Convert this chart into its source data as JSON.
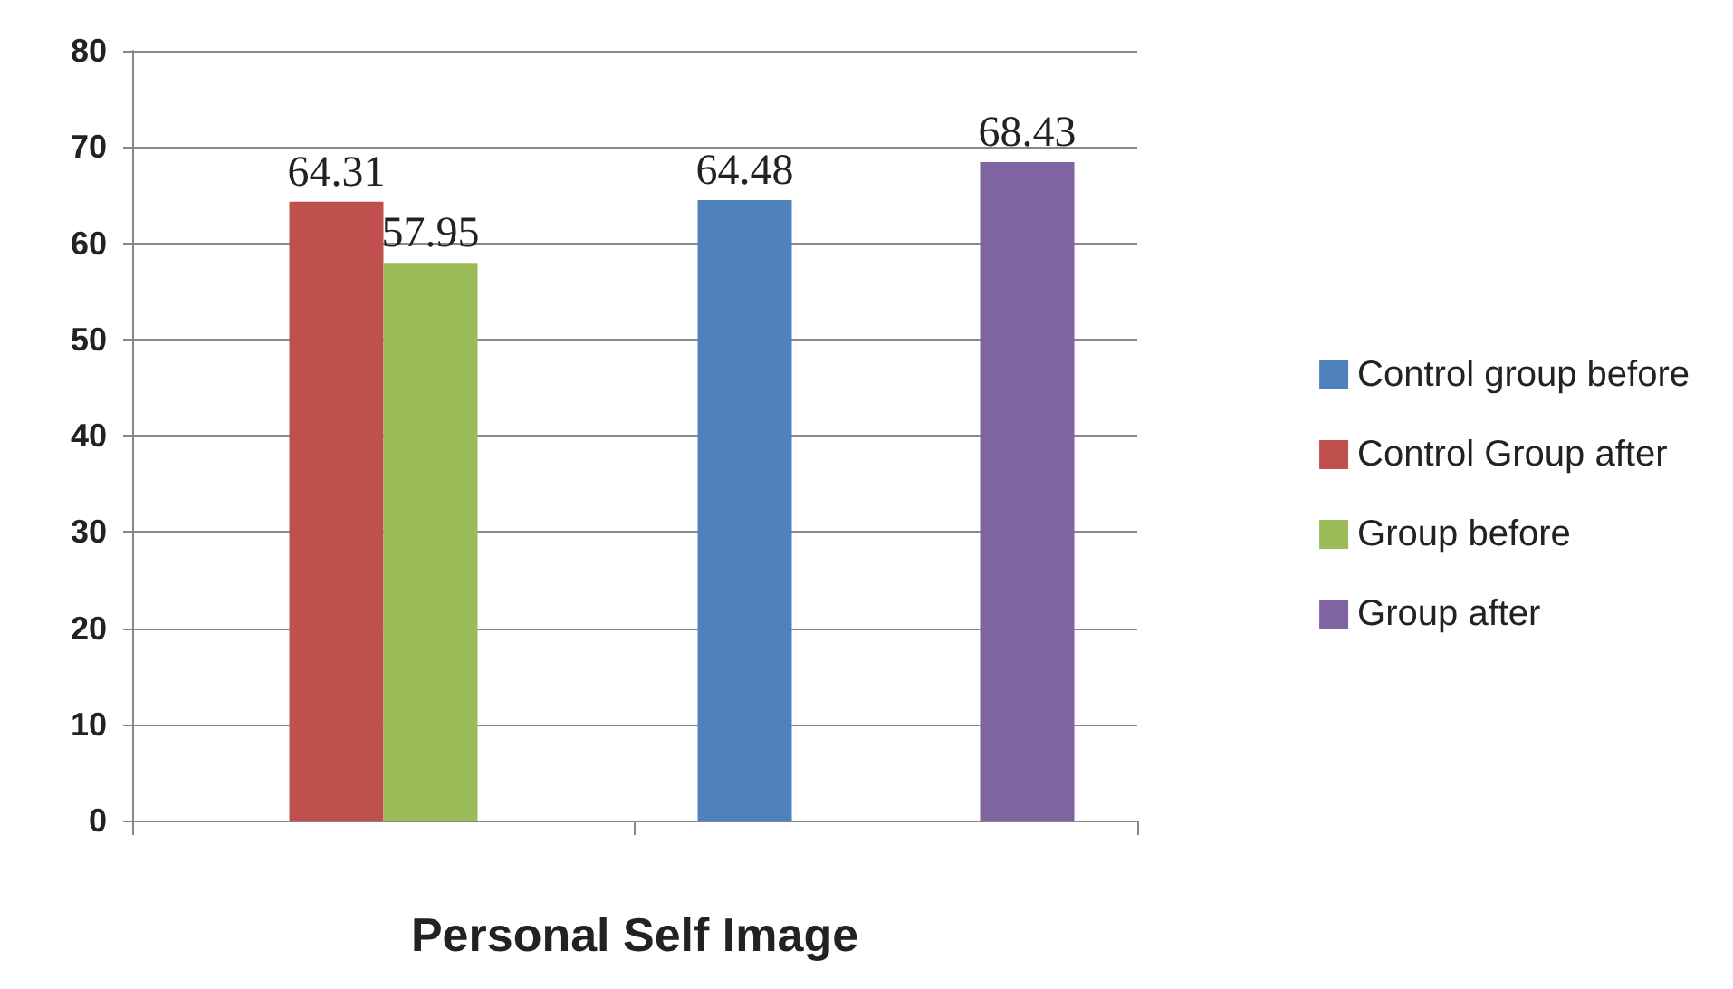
{
  "chart_data": {
    "type": "bar",
    "xlabel": "Personal Self Image",
    "categories": [
      null,
      null
    ],
    "series": [
      {
        "name": "Control group before",
        "color": "#4f81bd",
        "values": [
          null,
          64.48
        ]
      },
      {
        "name": "Control Group after",
        "color": "#c0504d",
        "values": [
          64.31,
          null
        ]
      },
      {
        "name": "Group before",
        "color": "#9bbb59",
        "values": [
          57.95,
          null
        ]
      },
      {
        "name": "Group after",
        "color": "#8064a2",
        "values": [
          null,
          68.43
        ]
      }
    ],
    "ylim": [
      0,
      80
    ],
    "yticks": [
      0,
      10,
      20,
      30,
      40,
      50,
      60,
      70,
      80
    ],
    "grid": "y",
    "legend": "right",
    "data_labels": true
  }
}
